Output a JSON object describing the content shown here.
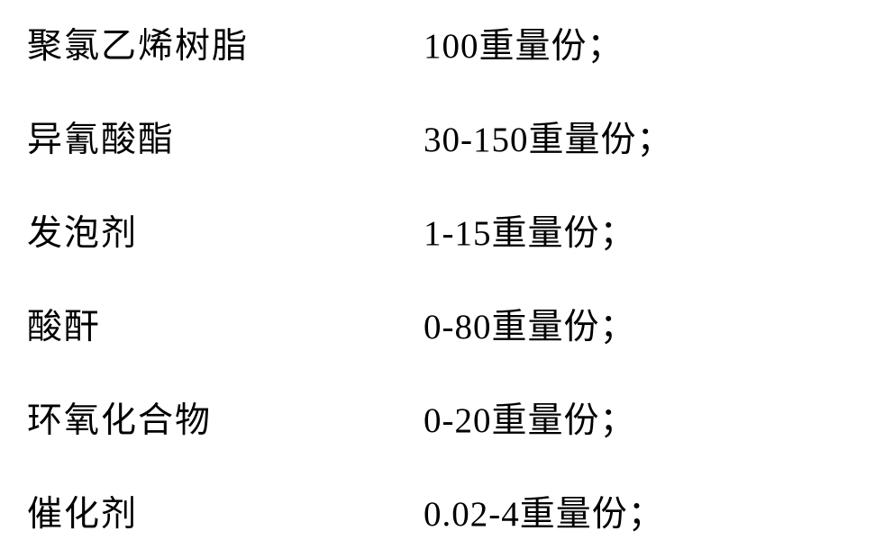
{
  "composition_table": {
    "type": "table",
    "background_color": "#ffffff",
    "text_color": "#000000",
    "fontsize": 39,
    "font_family": "SimSun",
    "row_gap": 48,
    "col_left_width": 440,
    "rows": [
      {
        "ingredient": "聚氯乙烯树脂",
        "amount": "100重量份；"
      },
      {
        "ingredient": "异氰酸酯",
        "amount": "30-150重量份；"
      },
      {
        "ingredient": "发泡剂",
        "amount": "1-15重量份；"
      },
      {
        "ingredient": "酸酐",
        "amount": "0-80重量份；"
      },
      {
        "ingredient": "环氧化合物",
        "amount": "0-20重量份；"
      },
      {
        "ingredient": "催化剂",
        "amount": "0.02-4重量份；"
      }
    ]
  }
}
